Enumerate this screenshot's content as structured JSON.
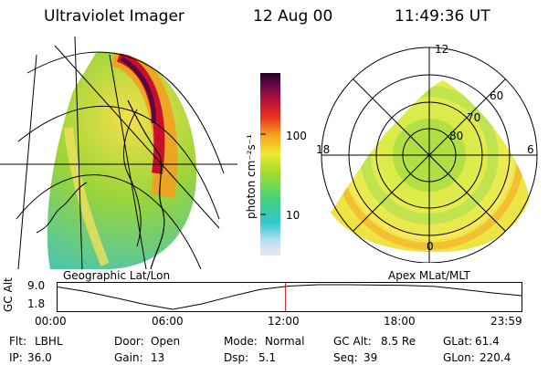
{
  "header": {
    "instrument": "Ultraviolet Imager",
    "date": "12 Aug 00",
    "time": "11:49:36 UT"
  },
  "colorbar": {
    "unit_label": "photon cm⁻²s⁻¹",
    "ticks": [
      "100",
      "10"
    ],
    "scale": "log"
  },
  "geo_panel": {
    "label": "Geographic Lat/Lon"
  },
  "polar_panel": {
    "label": "Apex MLat/MLT",
    "mlt_labels": [
      "12",
      "18",
      "6",
      "0"
    ],
    "mlat_labels": [
      "60",
      "70",
      "80"
    ]
  },
  "altitude_plot": {
    "ylabel": "GC Alt",
    "yticks": [
      "9.0",
      "1.8"
    ],
    "xticks": [
      "00:00",
      "06:00",
      "12:00",
      "18:00",
      "23:59"
    ],
    "marker_time": "11:49",
    "curve": {
      "x_hours": [
        0,
        1.5,
        3,
        4.5,
        6,
        7.5,
        9,
        10.5,
        12,
        13.5,
        15,
        16.5,
        18,
        19.5,
        21,
        22.5,
        24
      ],
      "alt_re": [
        8.4,
        7.0,
        5.2,
        3.3,
        1.8,
        3.4,
        5.6,
        7.6,
        8.6,
        9.0,
        9.0,
        8.9,
        8.8,
        8.5,
        7.6,
        6.6,
        5.8
      ]
    },
    "colors": {
      "curve": "#000000",
      "marker": "#d01010"
    }
  },
  "status": {
    "row1": [
      {
        "label": "Flt:",
        "value": "LBHL"
      },
      {
        "label": "Door:",
        "value": "Open"
      },
      {
        "label": "Mode:",
        "value": "Normal"
      },
      {
        "label": "GC Alt:",
        "value": "8.5 Re"
      },
      {
        "label": "GLat:",
        "value": "61.4"
      }
    ],
    "row2": [
      {
        "label": "IP:",
        "value": "36.0"
      },
      {
        "label": "Gain:",
        "value": "13"
      },
      {
        "label": "Dsp:",
        "value": "5.1"
      },
      {
        "label": "Seq:",
        "value": "39"
      },
      {
        "label": "GLon:",
        "value": "220.4"
      }
    ]
  }
}
